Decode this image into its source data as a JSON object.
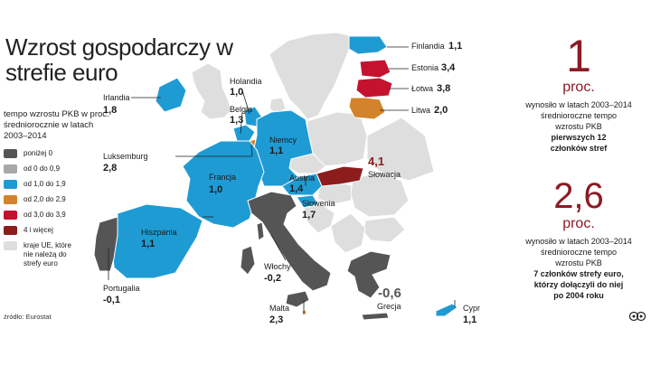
{
  "title": "Wzrost gospodarczy w strefie euro",
  "subtitle": "tempo wzrostu PKB w proc. średniorocznie w latach 2003–2014",
  "source": "źródło: Eurostat",
  "colors": {
    "below0": "#555555",
    "c0_09": "#a8a8a8",
    "c10_19": "#1f9bd4",
    "c20_29": "#d3832b",
    "c30_39": "#c4122f",
    "c4plus": "#8d1d1d",
    "nonEuro": "#dedede",
    "accent": "#8b1a24"
  },
  "legend": [
    {
      "label": "poniżej 0",
      "color": "#555555"
    },
    {
      "label": "od 0 do 0,9",
      "color": "#a8a8a8"
    },
    {
      "label": "od 1,0 do 1,9",
      "color": "#1f9bd4"
    },
    {
      "label": "od 2,0 do 2,9",
      "color": "#d3832b"
    },
    {
      "label": "od 3,0 do 3,9",
      "color": "#c4122f"
    },
    {
      "label": "4 i więcej",
      "color": "#8d1d1d"
    },
    {
      "label": "kraje UE, które nie należą do strefy euro",
      "color": "#dedede"
    }
  ],
  "countries": {
    "finlandia": {
      "name": "Finlandia",
      "value": "1,1"
    },
    "estonia": {
      "name": "Estonia",
      "value": "3,4"
    },
    "lotwa": {
      "name": "Łotwa",
      "value": "3,8"
    },
    "litwa": {
      "name": "Litwa",
      "value": "2,0"
    },
    "irlandia": {
      "name": "Irlandia",
      "value": "1,8"
    },
    "holandia": {
      "name": "Holandia",
      "value": "1,0"
    },
    "belgia": {
      "name": "Belgia",
      "value": "1,3"
    },
    "niemcy": {
      "name": "Niemcy",
      "value": "1,1"
    },
    "luksemburg": {
      "name": "Luksemburg",
      "value": "2,8"
    },
    "francja": {
      "name": "Francja",
      "value": "1,0"
    },
    "austria": {
      "name": "Austria",
      "value": "1,4"
    },
    "slowacja": {
      "name": "Słowacja",
      "value": "4,1"
    },
    "slowenia": {
      "name": "Słowenia",
      "value": "1,7"
    },
    "hiszpania": {
      "name": "Hiszpania",
      "value": "1,1"
    },
    "portugalia": {
      "name": "Portugalia",
      "value": "-0,1"
    },
    "wlochy": {
      "name": "Włochy",
      "value": "-0,2"
    },
    "grecja": {
      "name": "Grecja",
      "value": "-0,6"
    },
    "malta": {
      "name": "Malta",
      "value": "2,3"
    },
    "cypr": {
      "name": "Cypr",
      "value": "1,1"
    }
  },
  "stat1": {
    "number": "1",
    "unit": "proc.",
    "line1": "wynosiło w latach 2003–2014",
    "line2": "średnioroczne tempo",
    "line3": "wzrostu PKB",
    "bold1": "pierwszych 12",
    "bold2": "członków stref"
  },
  "stat2": {
    "number": "2,6",
    "unit": "proc.",
    "line1": "wynosiło w latach 2003–2014",
    "line2": "średnioroczne tempo",
    "line3": "wzrostu PKB",
    "bold1": "7 członków strefy euro,",
    "bold2": "którzy dołączyli do niej",
    "bold3": "po 2004 roku"
  },
  "logo": "copyright-logo"
}
